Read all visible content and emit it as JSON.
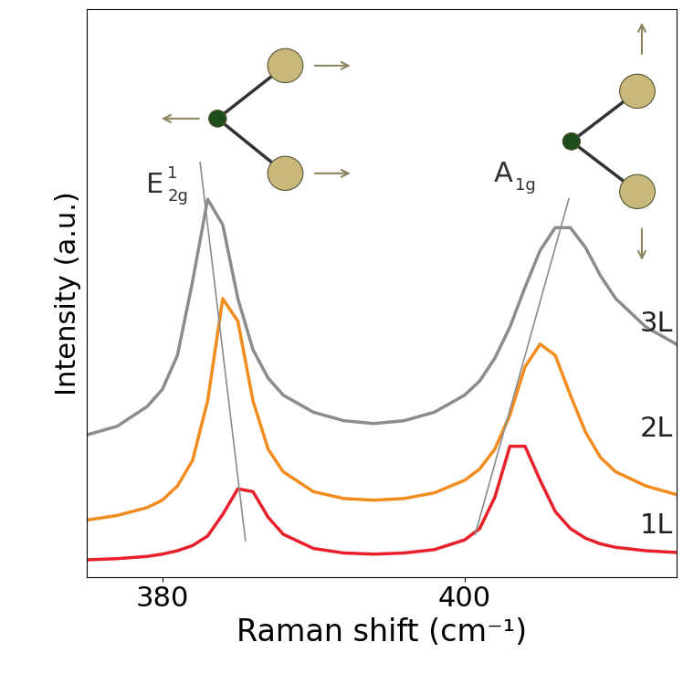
{
  "chart_data": {
    "type": "line",
    "xlabel": "Raman shift (cm⁻¹)",
    "ylabel": "Intensity (a.u.)",
    "x": [
      375,
      377,
      379,
      380,
      381,
      382,
      383,
      384,
      385,
      386,
      387,
      388,
      390,
      392,
      394,
      396,
      398,
      400,
      401,
      402,
      403,
      404,
      405,
      406,
      407,
      408,
      409,
      410,
      412,
      414
    ],
    "series": [
      {
        "name": "1L",
        "color": "#e8202a",
        "values": [
          0.03,
          0.032,
          0.036,
          0.04,
          0.046,
          0.055,
          0.072,
          0.11,
          0.155,
          0.15,
          0.105,
          0.075,
          0.05,
          0.042,
          0.04,
          0.042,
          0.048,
          0.065,
          0.085,
          0.14,
          0.23,
          0.23,
          0.17,
          0.115,
          0.085,
          0.068,
          0.058,
          0.052,
          0.046,
          0.043
        ]
      },
      {
        "name": "2L",
        "color": "#f28c1e",
        "values": [
          0.1,
          0.108,
          0.122,
          0.135,
          0.16,
          0.205,
          0.31,
          0.49,
          0.45,
          0.31,
          0.225,
          0.185,
          0.15,
          0.138,
          0.135,
          0.138,
          0.148,
          0.17,
          0.19,
          0.225,
          0.285,
          0.37,
          0.41,
          0.39,
          0.32,
          0.255,
          0.21,
          0.185,
          0.16,
          0.145
        ]
      },
      {
        "name": "3L",
        "color": "#8c8c8c",
        "values": [
          0.25,
          0.265,
          0.3,
          0.33,
          0.39,
          0.52,
          0.665,
          0.62,
          0.49,
          0.4,
          0.35,
          0.32,
          0.29,
          0.275,
          0.27,
          0.275,
          0.29,
          0.32,
          0.345,
          0.385,
          0.44,
          0.51,
          0.575,
          0.615,
          0.615,
          0.58,
          0.53,
          0.49,
          0.44,
          0.41
        ]
      }
    ],
    "trend_lines": [
      {
        "x": [
          382.5,
          385.5
        ],
        "y": [
          0.73,
          0.064
        ],
        "color": "#8c8c8c"
      },
      {
        "x": [
          400.7,
          406.9
        ],
        "y": [
          0.075,
          0.666
        ],
        "color": "#8c8c8c"
      }
    ],
    "annotations": [
      {
        "text": "E",
        "superscript": "1",
        "subscript": "2g"
      },
      {
        "text": "A",
        "subscript": "1g"
      }
    ],
    "xlim": [
      375,
      414
    ],
    "xticks": [
      380,
      400
    ],
    "ylim": [
      0,
      1
    ],
    "yticks": [],
    "tick_labels": "x",
    "grid": false
  }
}
